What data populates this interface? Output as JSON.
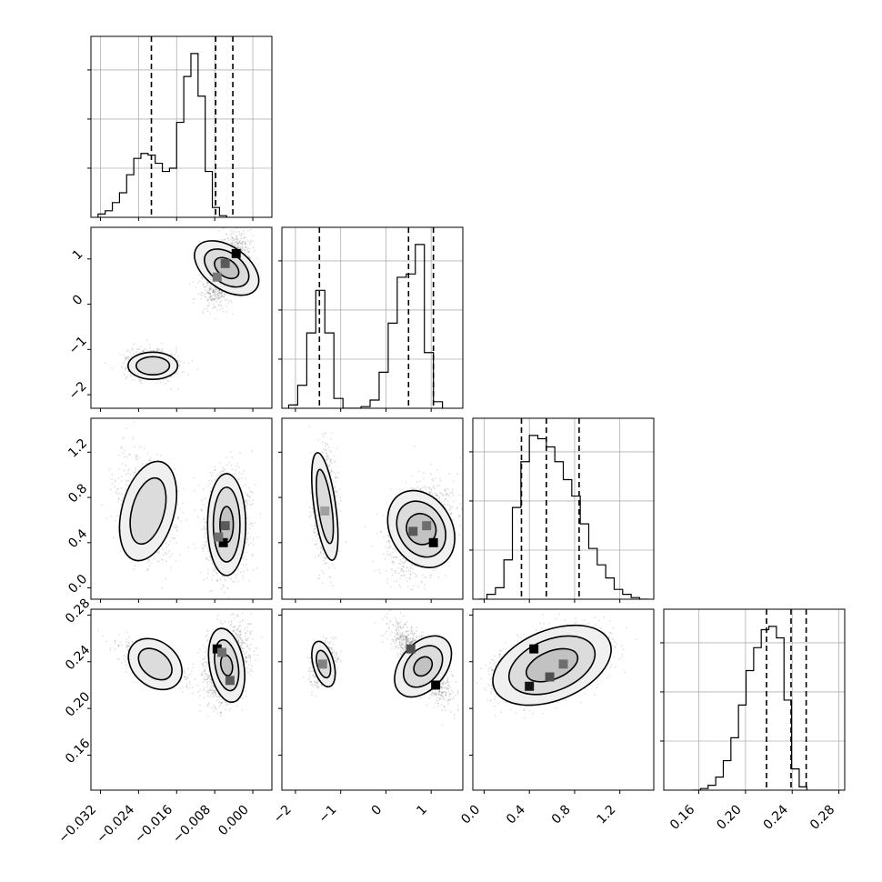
{
  "chart_data": {
    "type": "corner",
    "parameters": [
      {
        "range": [
          -0.034,
          0.004
        ],
        "ticks": [
          -0.032,
          -0.024,
          -0.016,
          -0.008,
          0.0
        ],
        "tick_labels": [
          "−0.032",
          "−0.024",
          "−0.016",
          "−0.008",
          "0.000"
        ],
        "quantiles": [
          -0.0213,
          -0.0078,
          -0.0042
        ]
      },
      {
        "range": [
          -2.3,
          1.7
        ],
        "ticks": [
          -2,
          -1,
          0,
          1
        ],
        "tick_labels": [
          "−2",
          "−1",
          "0",
          "1"
        ],
        "quantiles": [
          -1.47,
          0.5,
          1.05
        ]
      },
      {
        "range": [
          -0.1,
          1.5
        ],
        "ticks": [
          0.0,
          0.4,
          0.8,
          1.2
        ],
        "tick_labels": [
          "0.0",
          "0.4",
          "0.8",
          "1.2"
        ],
        "quantiles": [
          0.33,
          0.55,
          0.84
        ]
      },
      {
        "range": [
          0.13,
          0.285
        ],
        "ticks": [
          0.16,
          0.2,
          0.24,
          0.28
        ],
        "tick_labels": [
          "0.16",
          "0.20",
          "0.24",
          "0.28"
        ],
        "quantiles": [
          0.218,
          0.239,
          0.252
        ]
      }
    ],
    "histograms": [
      {
        "edges_start": -0.0325,
        "bin_width": 0.0015,
        "counts": [
          0.02,
          0.04,
          0.09,
          0.15,
          0.26,
          0.36,
          0.39,
          0.38,
          0.33,
          0.28,
          0.3,
          0.58,
          0.86,
          1.0,
          0.74,
          0.28,
          0.06,
          0.01
        ]
      },
      {
        "edges_start": -2.15,
        "bin_width": 0.2,
        "counts": [
          0.02,
          0.14,
          0.46,
          0.72,
          0.46,
          0.06,
          0.0,
          0.0,
          0.01,
          0.05,
          0.22,
          0.52,
          0.8,
          0.82,
          1.0,
          0.34,
          0.04
        ]
      },
      {
        "edges_start": -0.05,
        "bin_width": 0.075,
        "counts": [
          0.0,
          0.03,
          0.07,
          0.24,
          0.56,
          0.84,
          1.0,
          0.98,
          0.93,
          0.84,
          0.73,
          0.63,
          0.46,
          0.31,
          0.21,
          0.13,
          0.06,
          0.03,
          0.01,
          0.0
        ]
      },
      {
        "edges_start": 0.155,
        "bin_width": 0.0065,
        "counts": [
          0.0,
          0.01,
          0.03,
          0.08,
          0.18,
          0.32,
          0.52,
          0.73,
          0.87,
          0.98,
          1.0,
          0.93,
          0.55,
          0.13,
          0.02
        ]
      }
    ],
    "point_clusters": [
      {
        "panel": [
          0,
          1
        ],
        "center": [
          -0.021,
          -1.33
        ],
        "spread": [
          0.0027,
          0.16
        ],
        "corr": 0.0,
        "weight": 0.33
      },
      {
        "panel": [
          0,
          1
        ],
        "center": [
          -0.0055,
          0.78
        ],
        "spread": [
          0.0022,
          0.37
        ],
        "corr": 0.55,
        "weight": 0.67
      },
      {
        "panel": [
          0,
          2
        ],
        "center": [
          -0.022,
          0.68
        ],
        "spread": [
          0.0031,
          0.24
        ],
        "corr": -0.35,
        "weight": 0.33
      },
      {
        "panel": [
          0,
          2
        ],
        "center": [
          -0.0055,
          0.55
        ],
        "spread": [
          0.0022,
          0.23
        ],
        "corr": 0.0,
        "weight": 0.67
      },
      {
        "panel": [
          0,
          3
        ],
        "center": [
          -0.021,
          0.238
        ],
        "spread": [
          0.0033,
          0.0085
        ],
        "corr": -0.75,
        "weight": 0.33
      },
      {
        "panel": [
          0,
          3
        ],
        "center": [
          -0.0055,
          0.238
        ],
        "spread": [
          0.0022,
          0.0155
        ],
        "corr": 0.3,
        "weight": 0.67
      },
      {
        "panel": [
          1,
          2
        ],
        "center": [
          -1.35,
          0.72
        ],
        "spread": [
          0.13,
          0.25
        ],
        "corr": 0.0,
        "weight": 0.33
      },
      {
        "panel": [
          1,
          2
        ],
        "center": [
          0.75,
          0.52
        ],
        "spread": [
          0.34,
          0.2
        ],
        "corr": 0.35,
        "weight": 0.67
      },
      {
        "panel": [
          1,
          3
        ],
        "center": [
          -1.38,
          0.238
        ],
        "spread": [
          0.13,
          0.0085
        ],
        "corr": 0.3,
        "weight": 0.33
      },
      {
        "panel": [
          1,
          3
        ],
        "center": [
          0.8,
          0.238
        ],
        "spread": [
          0.3,
          0.0155
        ],
        "corr": -0.75,
        "weight": 0.67
      },
      {
        "panel": [
          2,
          3
        ],
        "center": [
          0.58,
          0.238
        ],
        "spread": [
          0.24,
          0.0145
        ],
        "corr": 0.45,
        "weight": 1.0
      }
    ],
    "contours": [
      {
        "panel": [
          0,
          1
        ],
        "center": [
          -0.021,
          -1.36
        ],
        "rx": [
          0.0052,
          0.0035
        ],
        "ry": [
          0.3,
          0.2
        ],
        "rot": 0
      },
      {
        "panel": [
          0,
          1
        ],
        "center": [
          -0.0055,
          0.8
        ],
        "rx": [
          0.0045,
          0.0032,
          0.0018
        ],
        "ry": [
          0.8,
          0.55,
          0.3
        ],
        "rot": -55
      },
      {
        "panel": [
          0,
          2
        ],
        "center": [
          -0.022,
          0.68
        ],
        "rx": [
          0.0055,
          0.0034
        ],
        "ry": [
          0.45,
          0.3
        ],
        "rot": 15
      },
      {
        "panel": [
          0,
          2
        ],
        "center": [
          -0.0055,
          0.56
        ],
        "rx": [
          0.004,
          0.0028,
          0.0014
        ],
        "ry": [
          0.45,
          0.33,
          0.16
        ],
        "rot": 0
      },
      {
        "panel": [
          0,
          3
        ],
        "center": [
          -0.0205,
          0.238
        ],
        "rx": [
          0.0062,
          0.004
        ],
        "ry": [
          0.019,
          0.011
        ],
        "rot": 40
      },
      {
        "panel": [
          0,
          3
        ],
        "center": [
          -0.0055,
          0.237
        ],
        "rx": [
          0.0036,
          0.0024,
          0.0012
        ],
        "ry": [
          0.032,
          0.022,
          0.009
        ],
        "rot": -10
      },
      {
        "panel": [
          1,
          2
        ],
        "center": [
          -1.35,
          0.72
        ],
        "rx": [
          0.24,
          0.15
        ],
        "ry": [
          0.48,
          0.33
        ],
        "rot": -8
      },
      {
        "panel": [
          1,
          2
        ],
        "center": [
          0.78,
          0.52
        ],
        "rx": [
          0.68,
          0.5,
          0.32
        ],
        "ry": [
          0.36,
          0.26,
          0.14
        ],
        "rot": -30
      },
      {
        "panel": [
          1,
          3
        ],
        "center": [
          -1.38,
          0.238
        ],
        "rx": [
          0.23,
          0.14
        ],
        "ry": [
          0.02,
          0.012
        ],
        "rot": -15
      },
      {
        "panel": [
          1,
          3
        ],
        "center": [
          0.82,
          0.236
        ],
        "rx": [
          0.5,
          0.36,
          0.18
        ],
        "ry": [
          0.03,
          0.02,
          0.009
        ],
        "rot": 40
      },
      {
        "panel": [
          2,
          3
        ],
        "center": [
          0.6,
          0.237
        ],
        "rx": [
          0.55,
          0.4,
          0.24
        ],
        "ry": [
          0.03,
          0.022,
          0.012
        ],
        "rot": -22
      }
    ],
    "peak_cells": [
      {
        "panel": [
          0,
          1
        ],
        "cells": [
          [
            -0.0035,
            1.12,
            1.0
          ],
          [
            -0.0058,
            0.9,
            0.55
          ],
          [
            -0.0075,
            0.6,
            0.4
          ]
        ]
      },
      {
        "panel": [
          0,
          2
        ],
        "cells": [
          [
            -0.0062,
            0.4,
            1.0
          ],
          [
            -0.0058,
            0.55,
            0.55
          ],
          [
            -0.0072,
            0.45,
            0.45
          ]
        ]
      },
      {
        "panel": [
          0,
          3
        ],
        "cells": [
          [
            -0.0075,
            0.251,
            1.0
          ],
          [
            -0.0048,
            0.224,
            0.55
          ],
          [
            -0.0065,
            0.248,
            0.45
          ]
        ]
      },
      {
        "panel": [
          1,
          2
        ],
        "cells": [
          [
            1.05,
            0.4,
            1.0
          ],
          [
            0.6,
            0.5,
            0.55
          ],
          [
            0.9,
            0.55,
            0.45
          ],
          [
            -1.35,
            0.68,
            0.2
          ]
        ]
      },
      {
        "panel": [
          1,
          3
        ],
        "cells": [
          [
            1.1,
            0.22,
            1.0
          ],
          [
            0.55,
            0.251,
            0.6
          ],
          [
            -1.4,
            0.238,
            0.35
          ]
        ]
      },
      {
        "panel": [
          2,
          3
        ],
        "cells": [
          [
            0.44,
            0.251,
            1.0
          ],
          [
            0.4,
            0.219,
            0.9
          ],
          [
            0.58,
            0.227,
            0.6
          ],
          [
            0.7,
            0.238,
            0.45
          ]
        ]
      }
    ]
  }
}
